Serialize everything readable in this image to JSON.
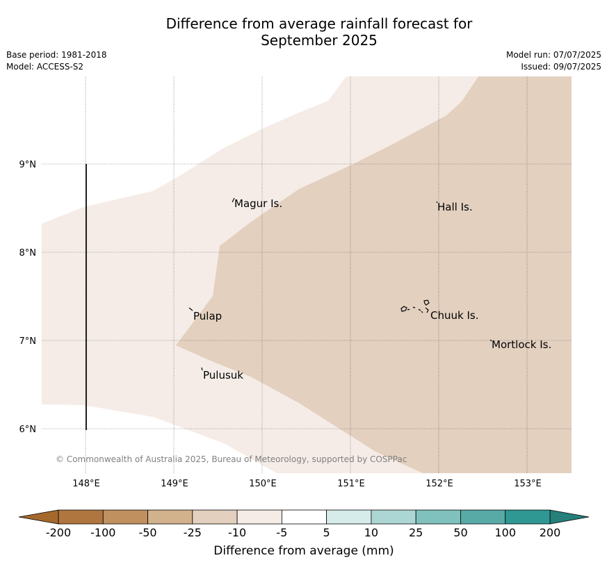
{
  "title_line1": "Difference from average rainfall forecast for",
  "title_line2": "September 2025",
  "meta": {
    "base_period": "Base period: 1981-2018",
    "model": "Model: ACCESS-S2",
    "model_run": "Model run: 07/07/2025",
    "issued": "Issued: 09/07/2025"
  },
  "copyright": "© Commonwealth of Australia 2025, Bureau of Meteorology, supported by COSPPac",
  "lon_labels": [
    "148°E",
    "149°E",
    "150°E",
    "151°E",
    "152°E",
    "153°E"
  ],
  "lat_labels": [
    "9°N",
    "8°N",
    "7°N",
    "6°N"
  ],
  "places": [
    "Magur Is.",
    "Hall Is.",
    "Pulap",
    "Chuuk Is.",
    "Mortlock Is.",
    "Pulusuk"
  ],
  "colorbar": {
    "title": "Difference from average (mm)",
    "ticks": [
      "-200",
      "-100",
      "-50",
      "-25",
      "-10",
      "-5",
      "5",
      "10",
      "25",
      "50",
      "100",
      "200"
    ],
    "colors": [
      "#a5692d",
      "#b07640",
      "#c0905f",
      "#d2b18d",
      "#e3d0bf",
      "#f5ece7",
      "#ffffff",
      "#d6ecea",
      "#acd6d4",
      "#80c1bd",
      "#58aaa6",
      "#2f9893",
      "#267f7a"
    ]
  },
  "map_colors": {
    "light_class": "#f5ece7",
    "medium_class": "#e3d0bf"
  }
}
